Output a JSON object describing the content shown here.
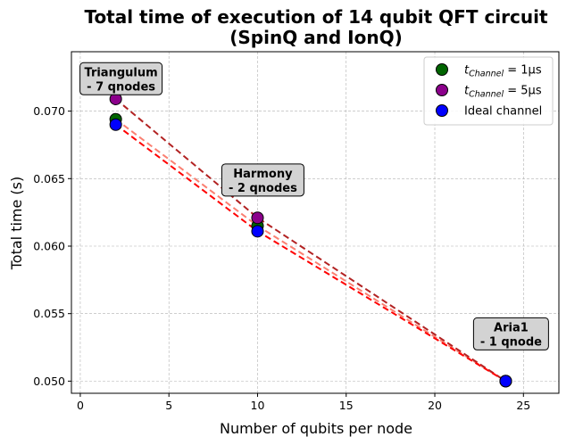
{
  "chart_data": {
    "type": "scatter",
    "title": [
      "Total time of execution of 14 qubit QFT circuit",
      "(SpinQ and IonQ)"
    ],
    "xlabel": "Number of qubits per node",
    "ylabel": "Total time (s)",
    "xlim": [
      -0.5,
      27
    ],
    "ylim": [
      0.0491,
      0.0744
    ],
    "xticks": [
      0,
      5,
      10,
      15,
      20,
      25
    ],
    "yticks": [
      0.05,
      0.055,
      0.06,
      0.065,
      0.07
    ],
    "ytick_labels": [
      "0.050",
      "0.055",
      "0.060",
      "0.065",
      "0.070"
    ],
    "grid": true,
    "legend_position": "top-right",
    "series": [
      {
        "name": "t_Channel = 1μs",
        "legend_base": "t",
        "legend_sub": "Channel",
        "legend_rest": " = 1μs",
        "color": "#006400",
        "line_color": "#fa8072",
        "x": [
          2,
          10,
          24
        ],
        "y": [
          0.0694,
          0.0615,
          0.05
        ]
      },
      {
        "name": "t_Channel = 5μs",
        "legend_base": "t",
        "legend_sub": "Channel",
        "legend_rest": " = 5μs",
        "color": "#8b008b",
        "line_color": "#b22222",
        "x": [
          2,
          10,
          24
        ],
        "y": [
          0.0709,
          0.0621,
          0.05
        ]
      },
      {
        "name": "Ideal channel",
        "legend_base": "Ideal channel",
        "legend_sub": "",
        "legend_rest": "",
        "color": "#0000ff",
        "line_color": "#ff0000",
        "x": [
          2,
          10,
          24
        ],
        "y": [
          0.069,
          0.0611,
          0.05
        ]
      }
    ],
    "annotations": [
      {
        "lines": [
          "Triangulum",
          "- 7 qnodes"
        ],
        "x": 2.3,
        "y": 0.0724
      },
      {
        "lines": [
          "Harmony",
          "- 2 qnodes"
        ],
        "x": 10.3,
        "y": 0.0649
      },
      {
        "lines": [
          "Aria1",
          "- 1 qnode"
        ],
        "x": 24.3,
        "y": 0.0535
      }
    ]
  }
}
